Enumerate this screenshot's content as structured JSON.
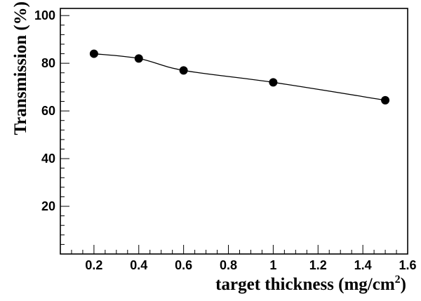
{
  "chart_data": {
    "type": "line",
    "title": "",
    "xlabel": "target thickness (mg/cm",
    "xlabel_superscript": "2",
    "xlabel_suffix": ")",
    "ylabel": "Transmission (%)",
    "xlim": [
      0.05,
      1.6
    ],
    "ylim": [
      0,
      103
    ],
    "x_ticks": [
      0.2,
      0.4,
      0.6,
      0.8,
      1,
      1.2,
      1.4,
      1.6
    ],
    "x_tick_labels": [
      "0.2",
      "0.4",
      "0.6",
      "0.8",
      "1",
      "1.2",
      "1.4",
      "1.6"
    ],
    "y_ticks": [
      20,
      40,
      60,
      80,
      100
    ],
    "y_tick_labels": [
      "20",
      "40",
      "60",
      "80",
      "100"
    ],
    "grid": false,
    "legend": "none",
    "series": [
      {
        "x": [
          0.2,
          0.4,
          0.6,
          1.0,
          1.5
        ],
        "y": [
          84,
          82,
          77,
          72,
          64.5
        ],
        "color": "#000000",
        "marker": "filled-circle",
        "line": "smooth"
      }
    ]
  }
}
